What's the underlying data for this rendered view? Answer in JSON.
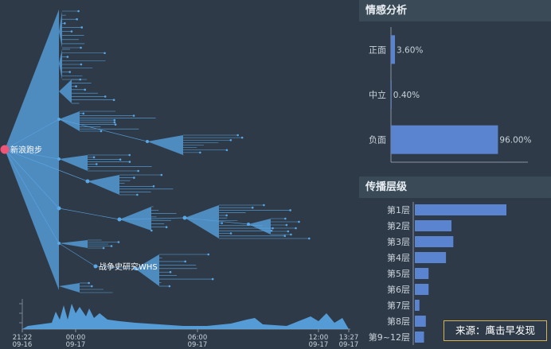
{
  "propagation": {
    "root_label": "新浪跑步",
    "hub_label": "战争史研究WHS"
  },
  "timeline": {
    "ticks": [
      {
        "time": "21:22",
        "date": "09-16"
      },
      {
        "time": "00:00",
        "date": "09-17"
      },
      {
        "time": "06:00",
        "date": "09-17"
      },
      {
        "time": "12:00",
        "date": "09-17"
      },
      {
        "time": "13:27",
        "date": "09-17"
      }
    ]
  },
  "sentiment": {
    "title": "情感分析",
    "chart_data": {
      "type": "bar",
      "orientation": "horizontal",
      "categories": [
        "正面",
        "中立",
        "负面"
      ],
      "values": [
        3.6,
        0.4,
        96.0
      ],
      "value_labels": [
        "3.60%",
        "0.40%",
        "96.00%"
      ],
      "xlim": [
        0,
        100
      ],
      "color": "#5b84d0"
    }
  },
  "spread_levels": {
    "title": "传播层级",
    "chart_data": {
      "type": "bar",
      "orientation": "horizontal",
      "categories": [
        "第1层",
        "第2层",
        "第3层",
        "第4层",
        "第5层",
        "第6层",
        "第7层",
        "第8层",
        "第9~12层"
      ],
      "values": [
        100,
        40,
        42,
        34,
        15,
        15,
        5,
        12,
        10
      ],
      "xlim": [
        0,
        100
      ],
      "color": "#5b84d0"
    }
  },
  "source": {
    "label": "来源：鹰击早发现"
  },
  "colors": {
    "background": "#2e3a47",
    "header": "#3a4a56",
    "tree": "#5aa7e6",
    "root_node": "#ee5577",
    "bar": "#5b84d0"
  }
}
